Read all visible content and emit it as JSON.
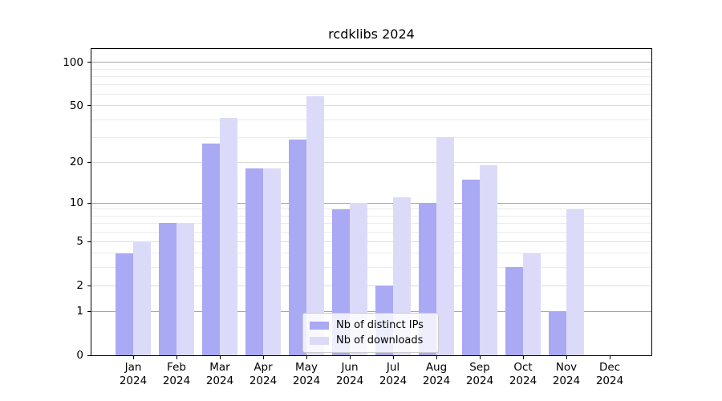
{
  "chart_data": {
    "type": "bar",
    "title": "rcdklibs 2024",
    "categories": [
      "Jan",
      "Feb",
      "Mar",
      "Apr",
      "May",
      "Jun",
      "Jul",
      "Aug",
      "Sep",
      "Oct",
      "Nov",
      "Dec"
    ],
    "category_year": "2024",
    "series": [
      {
        "name": "Nb of distinct IPs",
        "color": "#a9a9f4",
        "values": [
          4,
          7,
          27,
          18,
          29,
          9,
          2,
          10,
          15,
          3,
          1,
          0
        ]
      },
      {
        "name": "Nb of downloads",
        "color": "#dbdbf9",
        "values": [
          5,
          7,
          41,
          18,
          58,
          10,
          11,
          30,
          19,
          4,
          9,
          0
        ]
      }
    ],
    "y_scale": "log1p",
    "ylim": [
      0,
      124
    ],
    "y_tick_labels": [
      100,
      50,
      20,
      10,
      5,
      2,
      1,
      0
    ],
    "gridlines": {
      "major": [
        1,
        10,
        100
      ],
      "labeled_minor": [
        2,
        5,
        20,
        50
      ],
      "minor": [
        3,
        4,
        6,
        7,
        8,
        9,
        30,
        40,
        60,
        70,
        80,
        90
      ],
      "major_color": "#a6a6a6",
      "labeled_minor_color": "#dcdcdc",
      "minor_color": "#ebebeb"
    },
    "grid": true,
    "legend_position": "lower center",
    "axis_color": "#000000"
  }
}
